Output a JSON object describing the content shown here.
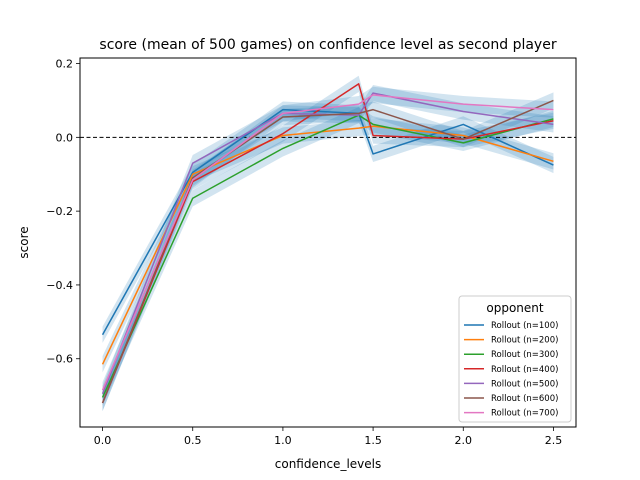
{
  "chart_data": {
    "type": "line",
    "title": "score (mean of 500 games) on confidence level as second player",
    "xlabel": "confidence_levels",
    "ylabel": "score",
    "x": [
      0.0,
      0.5,
      1.0,
      1.42,
      1.5,
      2.0,
      2.5
    ],
    "xlim": [
      -0.125,
      2.625
    ],
    "ylim": [
      -0.785,
      0.215
    ],
    "xticks": [
      0.0,
      0.5,
      1.0,
      1.5,
      2.0,
      2.5
    ],
    "xtick_labels": [
      "0.0",
      "0.5",
      "1.0",
      "1.5",
      "2.0",
      "2.5"
    ],
    "yticks": [
      -0.6,
      -0.4,
      -0.2,
      0.0,
      0.2
    ],
    "ytick_labels": [
      "−0.6",
      "−0.4",
      "−0.2",
      "0.0",
      "0.2"
    ],
    "reference_line": {
      "y": 0.0,
      "style": "dashed",
      "color": "#000000"
    },
    "band_halfwidth": 0.022,
    "band_color": "#1f77b4",
    "legend": {
      "title": "opponent",
      "position": "lower right"
    },
    "grid": false,
    "series": [
      {
        "name": "Rollout (n=100)",
        "color": "#1f77b4",
        "values": [
          -0.535,
          -0.095,
          0.075,
          0.065,
          -0.045,
          0.035,
          -0.075
        ]
      },
      {
        "name": "Rollout (n=200)",
        "color": "#ff7f0e",
        "values": [
          -0.615,
          -0.1,
          0.005,
          0.025,
          0.03,
          0.005,
          -0.065
        ]
      },
      {
        "name": "Rollout (n=300)",
        "color": "#2ca02c",
        "values": [
          -0.705,
          -0.165,
          -0.03,
          0.06,
          0.035,
          -0.015,
          0.05
        ]
      },
      {
        "name": "Rollout (n=400)",
        "color": "#d62728",
        "values": [
          -0.72,
          -0.12,
          0.01,
          0.145,
          0.005,
          -0.005,
          0.045
        ]
      },
      {
        "name": "Rollout (n=500)",
        "color": "#9467bd",
        "values": [
          -0.695,
          -0.07,
          0.065,
          0.06,
          0.12,
          0.07,
          0.035
        ]
      },
      {
        "name": "Rollout (n=600)",
        "color": "#8c564b",
        "values": [
          -0.72,
          -0.11,
          0.055,
          0.065,
          0.075,
          -0.005,
          0.1
        ]
      },
      {
        "name": "Rollout (n=700)",
        "color": "#e377c2",
        "values": [
          -0.685,
          -0.115,
          0.065,
          0.09,
          0.115,
          0.09,
          0.075
        ]
      }
    ]
  }
}
